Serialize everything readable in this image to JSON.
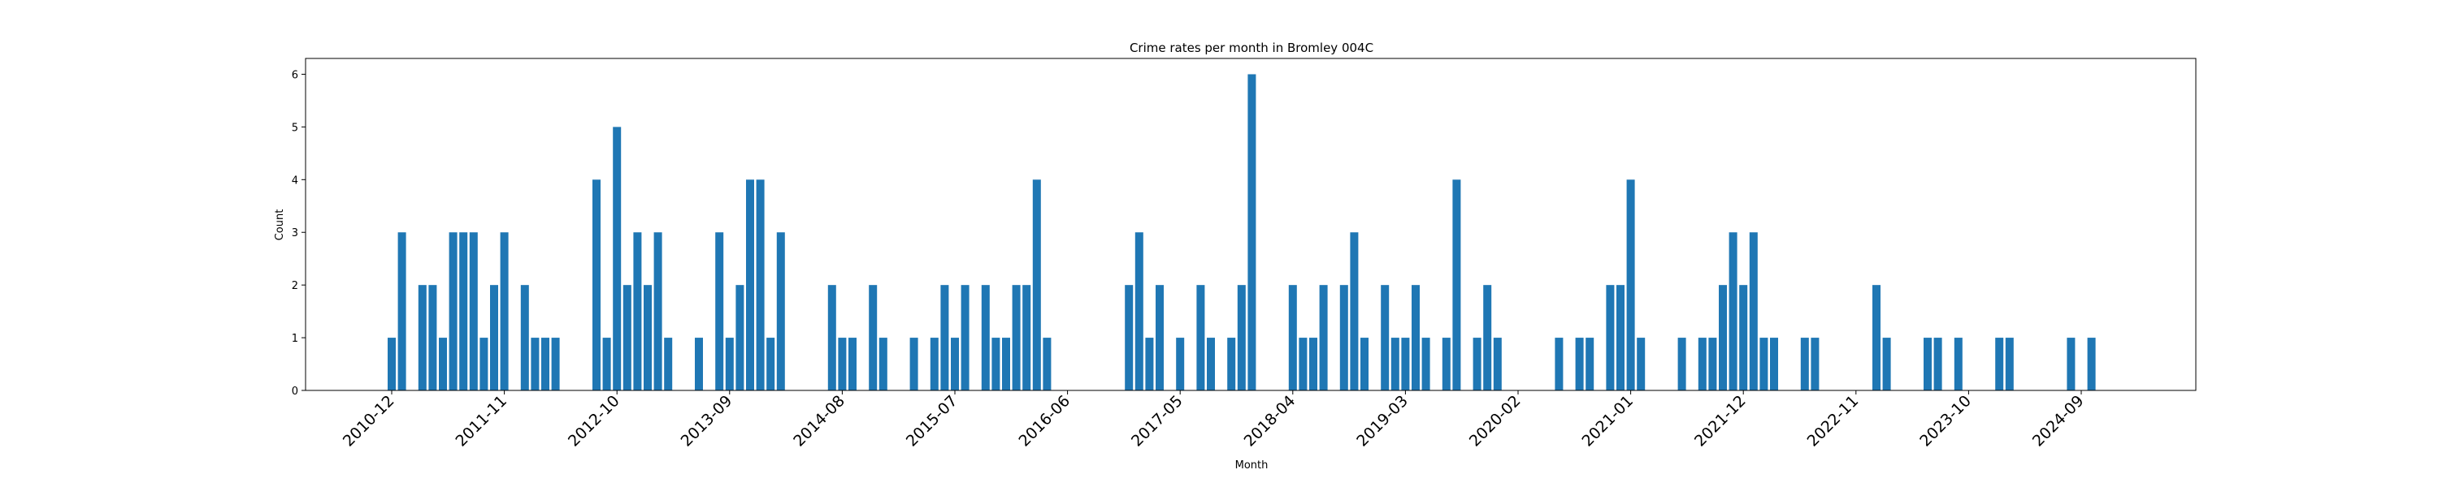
{
  "chart_data": {
    "type": "bar",
    "title": "Crime rates per month in Bromley 004C",
    "xlabel": "Month",
    "ylabel": "Count",
    "ylim": [
      0,
      6.3
    ],
    "yticks": [
      0,
      1,
      2,
      3,
      4,
      5,
      6
    ],
    "xticks": [
      "2010-12",
      "2011-11",
      "2012-10",
      "2013-09",
      "2014-08",
      "2015-07",
      "2016-06",
      "2017-05",
      "2018-04",
      "2019-03",
      "2020-02",
      "2021-01",
      "2021-12",
      "2022-11",
      "2023-10",
      "2024-09"
    ],
    "grid": false,
    "bar_color": "#1f77b4",
    "data": [
      {
        "x": "2010-12",
        "y": 1
      },
      {
        "x": "2011-01",
        "y": 3
      },
      {
        "x": "2011-03",
        "y": 2
      },
      {
        "x": "2011-04",
        "y": 2
      },
      {
        "x": "2011-05",
        "y": 1
      },
      {
        "x": "2011-06",
        "y": 3
      },
      {
        "x": "2011-07",
        "y": 3
      },
      {
        "x": "2011-08",
        "y": 3
      },
      {
        "x": "2011-09",
        "y": 1
      },
      {
        "x": "2011-10",
        "y": 2
      },
      {
        "x": "2011-11",
        "y": 3
      },
      {
        "x": "2012-01",
        "y": 2
      },
      {
        "x": "2012-02",
        "y": 1
      },
      {
        "x": "2012-03",
        "y": 1
      },
      {
        "x": "2012-04",
        "y": 1
      },
      {
        "x": "2012-08",
        "y": 4
      },
      {
        "x": "2012-09",
        "y": 1
      },
      {
        "x": "2012-10",
        "y": 5
      },
      {
        "x": "2012-11",
        "y": 2
      },
      {
        "x": "2012-12",
        "y": 3
      },
      {
        "x": "2013-01",
        "y": 2
      },
      {
        "x": "2013-02",
        "y": 3
      },
      {
        "x": "2013-03",
        "y": 1
      },
      {
        "x": "2013-06",
        "y": 1
      },
      {
        "x": "2013-08",
        "y": 3
      },
      {
        "x": "2013-09",
        "y": 1
      },
      {
        "x": "2013-10",
        "y": 2
      },
      {
        "x": "2013-11",
        "y": 4
      },
      {
        "x": "2013-12",
        "y": 4
      },
      {
        "x": "2014-01",
        "y": 1
      },
      {
        "x": "2014-02",
        "y": 3
      },
      {
        "x": "2014-07",
        "y": 2
      },
      {
        "x": "2014-08",
        "y": 1
      },
      {
        "x": "2014-09",
        "y": 1
      },
      {
        "x": "2014-11",
        "y": 2
      },
      {
        "x": "2014-12",
        "y": 1
      },
      {
        "x": "2015-03",
        "y": 1
      },
      {
        "x": "2015-05",
        "y": 1
      },
      {
        "x": "2015-06",
        "y": 2
      },
      {
        "x": "2015-07",
        "y": 1
      },
      {
        "x": "2015-08",
        "y": 2
      },
      {
        "x": "2015-10",
        "y": 2
      },
      {
        "x": "2015-11",
        "y": 1
      },
      {
        "x": "2015-12",
        "y": 1
      },
      {
        "x": "2016-01",
        "y": 2
      },
      {
        "x": "2016-02",
        "y": 2
      },
      {
        "x": "2016-03",
        "y": 4
      },
      {
        "x": "2016-04",
        "y": 1
      },
      {
        "x": "2016-12",
        "y": 2
      },
      {
        "x": "2017-01",
        "y": 3
      },
      {
        "x": "2017-02",
        "y": 1
      },
      {
        "x": "2017-03",
        "y": 2
      },
      {
        "x": "2017-05",
        "y": 1
      },
      {
        "x": "2017-07",
        "y": 2
      },
      {
        "x": "2017-08",
        "y": 1
      },
      {
        "x": "2017-10",
        "y": 1
      },
      {
        "x": "2017-11",
        "y": 2
      },
      {
        "x": "2017-12",
        "y": 6
      },
      {
        "x": "2018-04",
        "y": 2
      },
      {
        "x": "2018-05",
        "y": 1
      },
      {
        "x": "2018-06",
        "y": 1
      },
      {
        "x": "2018-07",
        "y": 2
      },
      {
        "x": "2018-09",
        "y": 2
      },
      {
        "x": "2018-10",
        "y": 3
      },
      {
        "x": "2018-11",
        "y": 1
      },
      {
        "x": "2019-01",
        "y": 2
      },
      {
        "x": "2019-02",
        "y": 1
      },
      {
        "x": "2019-03",
        "y": 1
      },
      {
        "x": "2019-04",
        "y": 2
      },
      {
        "x": "2019-05",
        "y": 1
      },
      {
        "x": "2019-07",
        "y": 1
      },
      {
        "x": "2019-08",
        "y": 4
      },
      {
        "x": "2019-10",
        "y": 1
      },
      {
        "x": "2019-11",
        "y": 2
      },
      {
        "x": "2019-12",
        "y": 1
      },
      {
        "x": "2020-06",
        "y": 1
      },
      {
        "x": "2020-08",
        "y": 1
      },
      {
        "x": "2020-09",
        "y": 1
      },
      {
        "x": "2020-11",
        "y": 2
      },
      {
        "x": "2020-12",
        "y": 2
      },
      {
        "x": "2021-01",
        "y": 4
      },
      {
        "x": "2021-02",
        "y": 1
      },
      {
        "x": "2021-06",
        "y": 1
      },
      {
        "x": "2021-08",
        "y": 1
      },
      {
        "x": "2021-09",
        "y": 1
      },
      {
        "x": "2021-10",
        "y": 2
      },
      {
        "x": "2021-11",
        "y": 3
      },
      {
        "x": "2021-12",
        "y": 2
      },
      {
        "x": "2022-01",
        "y": 3
      },
      {
        "x": "2022-02",
        "y": 1
      },
      {
        "x": "2022-03",
        "y": 1
      },
      {
        "x": "2022-06",
        "y": 1
      },
      {
        "x": "2022-07",
        "y": 1
      },
      {
        "x": "2023-01",
        "y": 2
      },
      {
        "x": "2023-02",
        "y": 1
      },
      {
        "x": "2023-06",
        "y": 1
      },
      {
        "x": "2023-07",
        "y": 1
      },
      {
        "x": "2023-09",
        "y": 1
      },
      {
        "x": "2024-01",
        "y": 1
      },
      {
        "x": "2024-02",
        "y": 1
      },
      {
        "x": "2024-08",
        "y": 1
      },
      {
        "x": "2024-10",
        "y": 1
      }
    ]
  }
}
